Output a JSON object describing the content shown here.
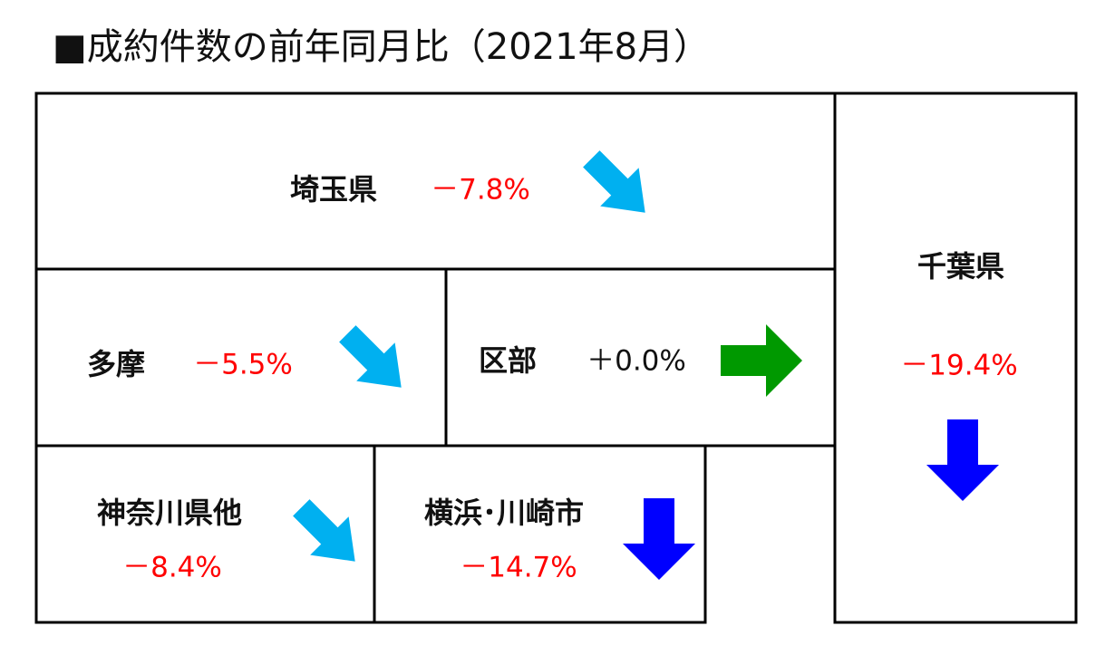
{
  "title": "■成約件数の前年同月比（2021年8月）",
  "regions": [
    {
      "name": "埼玉県",
      "change": "－7.8%"
    },
    {
      "name": "千葉県",
      "change": "－19.4%"
    },
    {
      "name": "多摩",
      "change": "－5.5%"
    },
    {
      "name": "区部",
      "change": "＋0.0%"
    },
    {
      "name": "神奈川県他",
      "change": "－8.4%"
    },
    {
      "name": "横浜･川崎市",
      "change": "－14.7%"
    }
  ]
}
